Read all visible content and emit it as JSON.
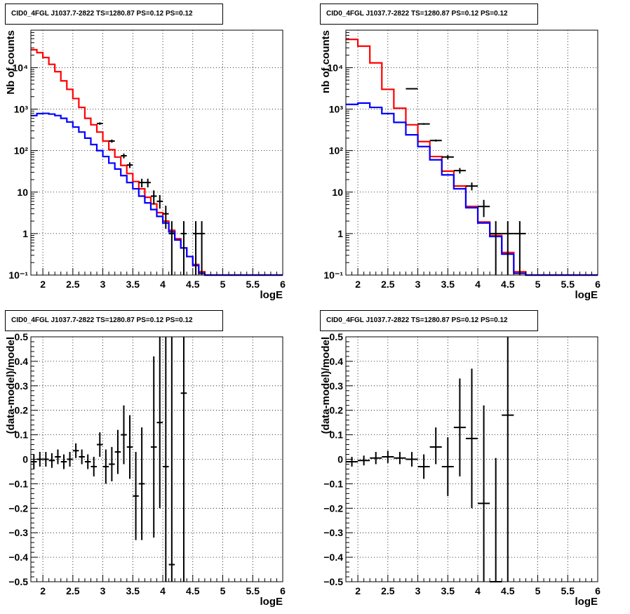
{
  "chart_data": [
    {
      "id": "top-left",
      "type": "line",
      "title": "CID0_4FGL J1037.7-2822 TS=1280.87 PS=0.12 PS=0.12",
      "xlabel": "logE",
      "ylabel": "Nb of counts",
      "yscale": "log",
      "xlim": [
        1.8,
        6.0
      ],
      "ylim": [
        0.1,
        80000
      ],
      "xticks": [
        "2",
        "2.5",
        "3",
        "3.5",
        "4",
        "4.5",
        "5",
        "5.5",
        "6"
      ],
      "yticks": [
        "10⁻¹",
        "1",
        "10",
        "10²",
        "10³",
        "10⁴"
      ],
      "grid": true,
      "series": [
        {
          "color": "#ff0000",
          "kind": "histogram",
          "x0": 1.8,
          "dx": 0.1,
          "values": [
            27000,
            23000,
            17500,
            12000,
            8000,
            4800,
            3000,
            1800,
            1100,
            600,
            420,
            280,
            170,
            105,
            70,
            44,
            28,
            18,
            12,
            7.5,
            5.2,
            3.2,
            2.0,
            1.2,
            0.75,
            0.45,
            0.28,
            0.18,
            0.12,
            0.1,
            0.1,
            0.1,
            0.1,
            0.1,
            0.1,
            0.1,
            0.1,
            0.1,
            0.1,
            0.1,
            0.1,
            0.1
          ]
        },
        {
          "color": "#0000ff",
          "kind": "histogram",
          "x0": 1.8,
          "dx": 0.1,
          "values": [
            700,
            780,
            790,
            760,
            700,
            600,
            490,
            370,
            280,
            200,
            140,
            100,
            72,
            50,
            36,
            25,
            17,
            12,
            8,
            5.5,
            3.8,
            2.6,
            1.8,
            1.1,
            0.7,
            0.45,
            0.28,
            0.17,
            0.11,
            0.1,
            0.1,
            0.1,
            0.1,
            0.1,
            0.1,
            0.1,
            0.1,
            0.1,
            0.1,
            0.1,
            0.1,
            0.1
          ]
        }
      ],
      "points": [
        {
          "x": 2.95,
          "y": 450,
          "lo": 420,
          "hi": 480
        },
        {
          "x": 3.15,
          "y": 170,
          "lo": 155,
          "hi": 185
        },
        {
          "x": 3.35,
          "y": 75,
          "lo": 65,
          "hi": 85
        },
        {
          "x": 3.45,
          "y": 45,
          "lo": 38,
          "hi": 52
        },
        {
          "x": 3.65,
          "y": 17,
          "lo": 13,
          "hi": 21
        },
        {
          "x": 3.75,
          "y": 17,
          "lo": 13,
          "hi": 21
        },
        {
          "x": 3.85,
          "y": 8,
          "lo": 5,
          "hi": 11
        },
        {
          "x": 3.95,
          "y": 6,
          "lo": 4,
          "hi": 8.5
        },
        {
          "x": 4.05,
          "y": 3,
          "lo": 1.3,
          "hi": 4.7
        },
        {
          "x": 4.15,
          "y": 1,
          "lo": 0.1,
          "hi": 2.0
        },
        {
          "x": 4.35,
          "y": 1,
          "lo": 0.1,
          "hi": 2.0
        },
        {
          "x": 4.55,
          "y": 1,
          "lo": 0.1,
          "hi": 2.0
        },
        {
          "x": 4.65,
          "y": 1,
          "lo": 0.1,
          "hi": 2.0
        }
      ]
    },
    {
      "id": "top-right",
      "type": "line",
      "title": "CID0_4FGL J1037.7-2822 TS=1280.87 PS=0.12 PS=0.12",
      "xlabel": "logE",
      "ylabel": "nb of counts",
      "yscale": "log",
      "xlim": [
        1.8,
        6.0
      ],
      "ylim": [
        0.1,
        80000
      ],
      "xticks": [
        "2",
        "2.5",
        "3",
        "3.5",
        "4",
        "4.5",
        "5",
        "5.5",
        "6"
      ],
      "yticks": [
        "10⁻¹",
        "1",
        "10",
        "10²",
        "10³",
        "10⁴"
      ],
      "grid": true,
      "series": [
        {
          "color": "#ff0000",
          "kind": "histogram",
          "x0": 1.8,
          "dx": 0.2,
          "values": [
            48000,
            33000,
            13000,
            3000,
            1050,
            420,
            165,
            72,
            32,
            14,
            4.5,
            1.9,
            0.9,
            0.35,
            0.12,
            0.1,
            0.1,
            0.1,
            0.1,
            0.1,
            0.1
          ]
        },
        {
          "color": "#0000ff",
          "kind": "histogram",
          "x0": 1.8,
          "dx": 0.2,
          "values": [
            1300,
            1400,
            1100,
            780,
            480,
            240,
            125,
            60,
            26,
            12,
            4.2,
            1.8,
            0.85,
            0.32,
            0.11,
            0.1,
            0.1,
            0.1,
            0.1,
            0.1,
            0.1
          ]
        }
      ],
      "points": [
        {
          "x": 2.9,
          "y": 3100,
          "lo": 3000,
          "hi": 3200
        },
        {
          "x": 3.1,
          "y": 440,
          "lo": 420,
          "hi": 460
        },
        {
          "x": 3.3,
          "y": 175,
          "lo": 165,
          "hi": 185
        },
        {
          "x": 3.5,
          "y": 70,
          "lo": 62,
          "hi": 78
        },
        {
          "x": 3.7,
          "y": 33,
          "lo": 28,
          "hi": 38
        },
        {
          "x": 3.9,
          "y": 14,
          "lo": 11,
          "hi": 17
        },
        {
          "x": 4.1,
          "y": 4.5,
          "lo": 2.5,
          "hi": 6.5
        },
        {
          "x": 4.3,
          "y": 1,
          "lo": 0.1,
          "hi": 2.0
        },
        {
          "x": 4.5,
          "y": 1,
          "lo": 0.1,
          "hi": 2.0
        },
        {
          "x": 4.7,
          "y": 1,
          "lo": 0.1,
          "hi": 2.0
        }
      ]
    },
    {
      "id": "bottom-left",
      "type": "scatter",
      "title": "CID0_4FGL J1037.7-2822 TS=1280.87 PS=0.12 PS=0.12",
      "xlabel": "logE",
      "ylabel": "(data-model)/model",
      "yscale": "linear",
      "xlim": [
        1.8,
        6.0
      ],
      "ylim": [
        -0.5,
        0.5
      ],
      "xticks": [
        "2",
        "2.5",
        "3",
        "3.5",
        "4",
        "4.5",
        "5",
        "5.5",
        "6"
      ],
      "yticks": [
        "−0.5",
        "−0.4",
        "−0.3",
        "−0.2",
        "−0.1",
        "0",
        "0.1",
        "0.2",
        "0.3",
        "0.4",
        "0.5"
      ],
      "grid": true,
      "series": [],
      "points": [
        {
          "x": 1.85,
          "y": -0.01,
          "lo": -0.04,
          "hi": 0.02
        },
        {
          "x": 1.95,
          "y": 0.0,
          "lo": -0.03,
          "hi": 0.03
        },
        {
          "x": 2.05,
          "y": 0.0,
          "lo": -0.03,
          "hi": 0.03
        },
        {
          "x": 2.15,
          "y": -0.005,
          "lo": -0.035,
          "hi": 0.025
        },
        {
          "x": 2.25,
          "y": 0.01,
          "lo": -0.02,
          "hi": 0.04
        },
        {
          "x": 2.35,
          "y": -0.01,
          "lo": -0.04,
          "hi": 0.02
        },
        {
          "x": 2.45,
          "y": 0.0,
          "lo": -0.03,
          "hi": 0.03
        },
        {
          "x": 2.55,
          "y": 0.035,
          "lo": 0.005,
          "hi": 0.065
        },
        {
          "x": 2.65,
          "y": 0.01,
          "lo": -0.02,
          "hi": 0.04
        },
        {
          "x": 2.75,
          "y": -0.01,
          "lo": -0.04,
          "hi": 0.02
        },
        {
          "x": 2.85,
          "y": -0.03,
          "lo": -0.07,
          "hi": 0.01
        },
        {
          "x": 2.95,
          "y": 0.06,
          "lo": 0.01,
          "hi": 0.11
        },
        {
          "x": 3.05,
          "y": -0.03,
          "lo": -0.1,
          "hi": 0.04
        },
        {
          "x": 3.15,
          "y": -0.02,
          "lo": -0.09,
          "hi": 0.05
        },
        {
          "x": 3.25,
          "y": 0.03,
          "lo": -0.06,
          "hi": 0.12
        },
        {
          "x": 3.35,
          "y": 0.1,
          "lo": -0.02,
          "hi": 0.22
        },
        {
          "x": 3.45,
          "y": 0.05,
          "lo": -0.08,
          "hi": 0.18
        },
        {
          "x": 3.55,
          "y": -0.15,
          "lo": -0.33,
          "hi": 0.03
        },
        {
          "x": 3.65,
          "y": -0.1,
          "lo": -0.33,
          "hi": 0.13
        },
        {
          "x": 3.85,
          "y": 0.05,
          "lo": -0.32,
          "hi": 0.42
        },
        {
          "x": 3.95,
          "y": 0.15,
          "lo": -0.2,
          "hi": 0.5
        },
        {
          "x": 4.05,
          "y": -0.03,
          "lo": -0.5,
          "hi": 0.5
        },
        {
          "x": 4.15,
          "y": -0.43,
          "lo": -0.5,
          "hi": 0.5
        },
        {
          "x": 4.35,
          "y": 0.27,
          "lo": -0.5,
          "hi": 0.5
        }
      ]
    },
    {
      "id": "bottom-right",
      "type": "scatter",
      "title": "CID0_4FGL J1037.7-2822 TS=1280.87 PS=0.12 PS=0.12",
      "xlabel": "logE",
      "ylabel": "(data-model)/model",
      "yscale": "linear",
      "xlim": [
        1.8,
        6.0
      ],
      "ylim": [
        -0.5,
        0.5
      ],
      "xticks": [
        "2",
        "2.5",
        "3",
        "3.5",
        "4",
        "4.5",
        "5",
        "5.5",
        "6"
      ],
      "yticks": [
        "−0.5",
        "−0.4",
        "−0.3",
        "−0.2",
        "−0.1",
        "0",
        "0.1",
        "0.2",
        "0.3",
        "0.4",
        "0.5"
      ],
      "grid": true,
      "series": [],
      "points": [
        {
          "x": 1.9,
          "y": -0.01,
          "lo": -0.03,
          "hi": 0.01
        },
        {
          "x": 2.1,
          "y": -0.005,
          "lo": -0.025,
          "hi": 0.015
        },
        {
          "x": 2.3,
          "y": 0.005,
          "lo": -0.02,
          "hi": 0.03
        },
        {
          "x": 2.5,
          "y": 0.01,
          "lo": -0.015,
          "hi": 0.035
        },
        {
          "x": 2.7,
          "y": 0.005,
          "lo": -0.02,
          "hi": 0.03
        },
        {
          "x": 2.9,
          "y": 0.0,
          "lo": -0.03,
          "hi": 0.03
        },
        {
          "x": 3.1,
          "y": -0.03,
          "lo": -0.08,
          "hi": 0.02
        },
        {
          "x": 3.3,
          "y": 0.05,
          "lo": -0.02,
          "hi": 0.13
        },
        {
          "x": 3.5,
          "y": -0.03,
          "lo": -0.15,
          "hi": 0.09
        },
        {
          "x": 3.7,
          "y": 0.13,
          "lo": -0.07,
          "hi": 0.33
        },
        {
          "x": 3.9,
          "y": 0.085,
          "lo": -0.2,
          "hi": 0.37
        },
        {
          "x": 4.1,
          "y": -0.18,
          "lo": -0.5,
          "hi": 0.22
        },
        {
          "x": 4.3,
          "y": -0.5,
          "lo": -0.5,
          "hi": 0.005
        },
        {
          "x": 4.5,
          "y": 0.18,
          "lo": -0.5,
          "hi": 0.5
        }
      ]
    }
  ]
}
